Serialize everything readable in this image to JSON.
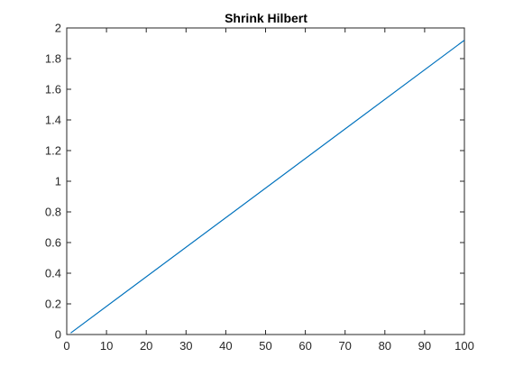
{
  "chart_data": {
    "type": "line",
    "title": "Shrink Hilbert",
    "xlabel": "",
    "ylabel": "",
    "xlim": [
      0,
      100
    ],
    "ylim": [
      0,
      2
    ],
    "xticks": [
      0,
      10,
      20,
      30,
      40,
      50,
      60,
      70,
      80,
      90,
      100
    ],
    "yticks": [
      0,
      0.2,
      0.4,
      0.6,
      0.8,
      1,
      1.2,
      1.4,
      1.6,
      1.8,
      2
    ],
    "xtick_labels": [
      "0",
      "10",
      "20",
      "30",
      "40",
      "50",
      "60",
      "70",
      "80",
      "90",
      "100"
    ],
    "ytick_labels": [
      "0",
      "0.2",
      "0.4",
      "0.6",
      "0.8",
      "1",
      "1.2",
      "1.4",
      "1.6",
      "1.8",
      "2"
    ],
    "grid": false,
    "series": [
      {
        "color": "#0072bd",
        "x": [
          1,
          100
        ],
        "y": [
          0.01,
          1.92
        ]
      }
    ]
  }
}
